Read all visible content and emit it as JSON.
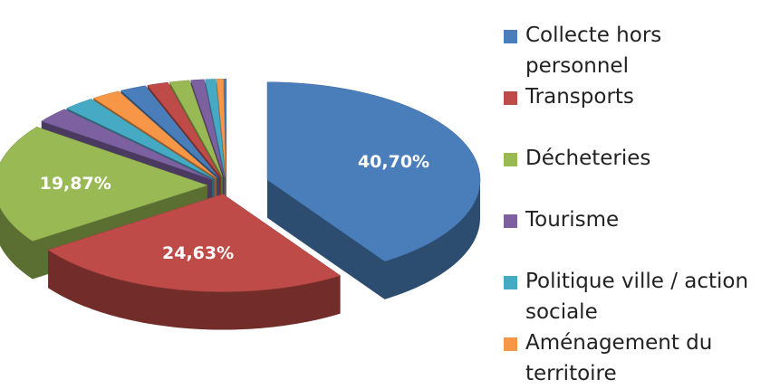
{
  "chart_data": {
    "type": "pie3d",
    "categories": [
      "Collecte hors personnel",
      "Transports",
      "Décheteries",
      "Tourisme",
      "Politique ville / action sociale",
      "Aménagement du territoire",
      null,
      null,
      null,
      null,
      null,
      null,
      null
    ],
    "values": [
      40.7,
      24.63,
      19.87,
      2.6,
      2.4,
      2.2,
      2.0,
      1.6,
      1.5,
      1.0,
      0.8,
      0.5,
      0.2
    ],
    "value_labels": [
      "40,70%",
      "24,63%",
      "19,87%",
      null,
      null,
      null,
      null,
      null,
      null,
      null,
      null,
      null,
      null
    ],
    "colors": [
      "#4a7ebb",
      "#be4b48",
      "#98b954",
      "#7d60a0",
      "#46aac5",
      "#f79646",
      "#4a7ebb",
      "#be4b48",
      "#98b954",
      "#7d60a0",
      "#46aac5",
      "#f79646",
      "#4a7ebb"
    ]
  }
}
